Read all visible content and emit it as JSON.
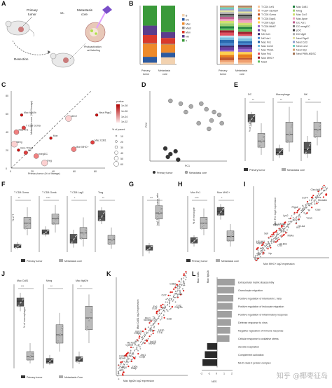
{
  "panel_labels": [
    "A",
    "B",
    "C",
    "D",
    "E",
    "F",
    "G",
    "H",
    "I",
    "J",
    "K",
    "L"
  ],
  "colors": {
    "primary_tumor": "#333333",
    "metastasis_core": "#aaaaaa",
    "red_point": "#e0201b",
    "orange_label": "#d18200"
  },
  "panelA": {
    "primary_tumor": "Primary\ntumor",
    "vs": "vs.",
    "metastasis_core": "Metastasis\ncore",
    "photoactivation": "Photoactivation\ncell labeling",
    "resection": "Resection"
  },
  "panelB": {
    "x_labels": [
      "Primary\ntumor",
      "Metastasis\ncore"
    ],
    "legend1": [
      "B",
      "DC",
      "Mac",
      "Mast",
      "Mon",
      "NK",
      "T"
    ],
    "legend2_col1": [
      "T CD4 Lef1",
      "T CD4 S100a4",
      "T CD8 Gzma",
      "T CD8 Dapl1",
      "T CD8 Lag3",
      "T CD8 Mki67",
      "Treg",
      "NK Xcl1",
      "NK Ncr1",
      "Mac Fn1",
      "Mac Ccl12",
      "Mac Thbs1",
      "Mon Fn1",
      "Mon MHC+",
      "Mast"
    ],
    "legend2_col2": [
      "Mac Cd81",
      "Mreg",
      "Mac Ccr2",
      "Mac Apoe",
      "DC Xcr1",
      "DC mregDC",
      "pDC",
      "DC Mgl2",
      "Neut Ptgs2",
      "Neut Ccl3",
      "Neut Lcn2",
      "Neut Slpi",
      "Neut PMN-MDSC"
    ],
    "chart_data": [
      {
        "type": "bar",
        "categories": [
          "Primary tumor",
          "Metastasis core"
        ],
        "series_names": [
          "B",
          "DC",
          "Mac",
          "Mast",
          "Mon",
          "NK",
          "T"
        ],
        "values_pct": [
          [
            3,
            12
          ],
          [
            10,
            8
          ],
          [
            22,
            14
          ],
          [
            1,
            1
          ],
          [
            14,
            10
          ],
          [
            16,
            10
          ],
          [
            34,
            45
          ]
        ]
      },
      {
        "type": "bar",
        "categories": [
          "Primary tumor",
          "Metastasis core"
        ]
      }
    ]
  },
  "panelC": {
    "ylabel": "Metastasis core (% of lineage)",
    "xlabel": "Primary tumor (% of lineage)",
    "pvalue_title": "pvalue",
    "pvalue_ticks": [
      "1e-08",
      "1e-06",
      "1e-04",
      "1e-02"
    ],
    "size_title": "% of parent",
    "size_ticks": [
      "10",
      "20",
      "30",
      "40",
      "50",
      "60"
    ],
    "x_ticks": [
      "0",
      "20",
      "40",
      "60",
      "80"
    ],
    "y_ticks": [
      "0",
      "20",
      "40",
      "60",
      "80"
    ],
    "annotations": [
      "Mac Itgb2b",
      "T CD8 Gzma",
      "Mac Fn1",
      "Mreg",
      "Mon Thbs1",
      "NK",
      "mregDC",
      "Treg",
      "Mon",
      "Mac Cd81",
      "Mon MHC+",
      "cDC2",
      "Neut Ptgs2"
    ],
    "chart_data": {
      "type": "scatter",
      "xlabel": "Primary tumor (% of lineage)",
      "ylabel": "Metastasis core (% of lineage)",
      "xlim": [
        0,
        90
      ],
      "ylim": [
        0,
        90
      ],
      "points": [
        {
          "label": "Mac Itgb2b",
          "x": 10,
          "y": 62
        },
        {
          "label": "T CD8 Gzma",
          "x": 12,
          "y": 47
        },
        {
          "label": "Mac Fn1",
          "x": 5,
          "y": 42
        },
        {
          "label": "Mreg",
          "x": 3,
          "y": 28
        },
        {
          "label": "Mon Thbs1",
          "x": 7,
          "y": 21
        },
        {
          "label": "NK",
          "x": 14,
          "y": 18
        },
        {
          "label": "mregDC",
          "x": 24,
          "y": 14
        },
        {
          "label": "Treg",
          "x": 32,
          "y": 6
        },
        {
          "label": "Mon",
          "x": 38,
          "y": 35
        },
        {
          "label": "Mac Cd81",
          "x": 78,
          "y": 30
        },
        {
          "label": "Mon MHC+",
          "x": 60,
          "y": 22
        },
        {
          "label": "cDC2",
          "x": 55,
          "y": 58
        },
        {
          "label": "Neut Ptgs2",
          "x": 82,
          "y": 62
        }
      ]
    }
  },
  "panelD": {
    "xlabel": "PC1",
    "ylabel": "PC2",
    "legend": [
      "Primary tumor",
      "Metastasis core"
    ],
    "chart_data": {
      "type": "scatter",
      "series": [
        {
          "name": "Primary tumor",
          "points": [
            [
              0.6,
              -0.8
            ],
            [
              0.8,
              -1.0
            ],
            [
              1.0,
              -0.9
            ],
            [
              0.7,
              -1.1
            ],
            [
              1.1,
              -1.2
            ]
          ]
        },
        {
          "name": "Metastasis core",
          "points": [
            [
              0.8,
              0.9
            ],
            [
              1.2,
              0.8
            ],
            [
              1.6,
              0.7
            ],
            [
              1.4,
              0.5
            ],
            [
              2.0,
              0.8
            ],
            [
              2.2,
              0.6
            ],
            [
              2.5,
              0.5
            ],
            [
              2.7,
              0.4
            ],
            [
              2.4,
              0.2
            ],
            [
              2.8,
              0.1
            ],
            [
              1.9,
              0.1
            ],
            [
              2.3,
              -0.1
            ]
          ]
        }
      ]
    }
  },
  "panelE": {
    "titles": [
      "DC",
      "Macrophage",
      "NK"
    ],
    "ylabel": "% of CD45+",
    "legend": [
      "Primary tumor",
      "Metastasis core"
    ],
    "sig": [
      "**",
      "**",
      "**"
    ]
  },
  "panelF": {
    "titles": [
      "T CD8 Gzma",
      "T CD8 Gzmk",
      "T CD8 Lag3",
      "Treg"
    ],
    "ylabel": "% of T",
    "legend": [
      "Primary tumor",
      "Metastasis core"
    ],
    "sig": [
      "**",
      "****",
      "*",
      "**"
    ]
  },
  "panelG": {
    "ylabel": "log2 T activated/T naive ratio",
    "sig": "***"
  },
  "panelH": {
    "titles": [
      "Mon Fn1",
      "Mon MHC+"
    ],
    "ylabel": "% of monocyte",
    "legend": [
      "Primary tumor",
      "Metastasis core"
    ],
    "sig": [
      "****",
      "*"
    ]
  },
  "panelI": {
    "ylabel": "Mon Fn1 log2 expression",
    "xlabel": "Mon MHC+ log2 expression",
    "genes": [
      "Mgst1",
      "Ctss",
      "Thbs1",
      "Ilr1",
      "Ptgs2",
      "Ctsd",
      "Clec4a2",
      "Hp",
      "Sell",
      "Ms4a",
      "Lyz2",
      "Vcan",
      "Cd74",
      "Ms4a6b",
      "H2-Ab1",
      "H2-Eb1",
      "H2-DMa",
      "H2-Aa",
      "Rgs1",
      "Cst3",
      "Tigd1",
      "Ly6a",
      "Ccr2",
      "Lgals1",
      "Ctla2a",
      "S100a6",
      "Crip1",
      "Ly6c2",
      "Tgm2",
      "Cebpb",
      "Ifitm3",
      "Xist",
      "Ier3",
      "Fcgr1",
      "Irf7",
      "Tpt1"
    ]
  },
  "panelJ": {
    "titles": [
      "Mac Cd81",
      "Mreg",
      "Mac Itgb2b"
    ],
    "ylabel": "% of macrophages",
    "legend": [
      "Primary tumor",
      "Metastasis-Core"
    ],
    "sig": [
      "***",
      "**",
      "**"
    ]
  },
  "panelK": {
    "ylabel": "Mac Cd81 log2 expression",
    "xlabel": "Mac Itgb2b log2 expression",
    "genes": [
      "Apoe",
      "C1qa",
      "C1qb",
      "C1qc",
      "Ctsd",
      "Fcgr2b",
      "Cd63",
      "Psap",
      "Lgals3",
      "Ms4a7",
      "Slc40a1",
      "Ccl8",
      "Ccl7",
      "Cd81",
      "Ccl12",
      "Arg1",
      "Itgb2b",
      "Hexb",
      "Fn1",
      "Ccl2",
      "Cxcl10",
      "Ly6a",
      "Ifi27l2a",
      "Isg15",
      "Mrc1"
    ]
  },
  "panelL": {
    "title_left": "Mac Cd81",
    "title_right": "Mac Itgb2b",
    "xlabel": "NES",
    "x_ticks": [
      "-2",
      "-1",
      "0",
      "1",
      "2"
    ],
    "chart_data": {
      "type": "bar",
      "categories": [
        "Extracellular matrix disassembly",
        "Granulocyte migration",
        "Positive regulation of interleukin 1 beta",
        "Positive regulation of leukocyte migration",
        "Positive regulation of inflammatory response",
        "Defense response to virus",
        "Negative regulation of immune response",
        "Cellular response to oxidative stress",
        "Aerobic respiration",
        "Complement activation",
        "MHC class II protein complex"
      ],
      "values": [
        2.3,
        2.2,
        2.1,
        2.0,
        1.9,
        1.8,
        1.7,
        1.6,
        -1.3,
        -1.6,
        -1.9
      ],
      "xlim": [
        -2,
        2.5
      ]
    }
  },
  "watermark": "知乎 @椰枣征岛"
}
